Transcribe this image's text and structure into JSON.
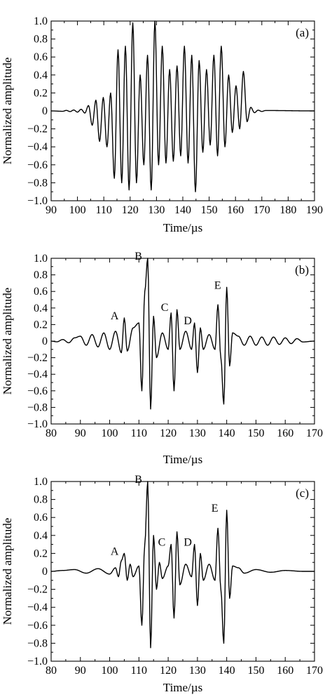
{
  "chart_data": [
    {
      "type": "line",
      "panel": "(a)",
      "xlabel": "Time/µs",
      "ylabel": "Normalized amplitude",
      "xlim": [
        90,
        190
      ],
      "ylim": [
        -1.0,
        1.0
      ],
      "xticks": [
        "90",
        "100",
        "110",
        "120",
        "130",
        "140",
        "150",
        "160",
        "170",
        "180",
        "190"
      ],
      "yticks": [
        "1.0",
        "0.8",
        "0.6",
        "0.4",
        "0.2",
        "0",
        "−0.2",
        "−0.4",
        "−0.6",
        "−0.8",
        "−1.0"
      ],
      "grid": false,
      "annotations": [],
      "series": [
        {
          "x": [
            104.2,
            105.6,
            107.0,
            108.4,
            109.8,
            111.2,
            112.6,
            114.0,
            115.4,
            116.8,
            118.2,
            119.6,
            121.0,
            122.4,
            123.8,
            125.2,
            126.6,
            128.0,
            129.4,
            130.8,
            132.2,
            133.6,
            135.0,
            136.4,
            137.8,
            139.2,
            140.6,
            142.0,
            143.4,
            144.8,
            146.2,
            147.6,
            149.0,
            150.4,
            151.8,
            153.2,
            154.6,
            156.0,
            157.4,
            158.8,
            160.2,
            161.6,
            163.0,
            164.4,
            165.8,
            167.2
          ],
          "y": [
            0.06,
            -0.16,
            0.12,
            -0.34,
            0.15,
            -0.4,
            0.2,
            -0.75,
            0.68,
            -0.8,
            0.72,
            -0.88,
            0.98,
            -0.8,
            0.4,
            -0.6,
            0.62,
            -0.88,
            1.0,
            -0.6,
            0.72,
            -0.58,
            0.46,
            -0.56,
            0.5,
            -0.5,
            0.72,
            -0.58,
            0.62,
            -0.9,
            0.56,
            -0.46,
            0.46,
            -0.38,
            0.62,
            -0.5,
            0.72,
            -0.4,
            0.4,
            -0.24,
            0.28,
            -0.2,
            0.44,
            -0.12,
            0.04,
            -0.02
          ]
        }
      ]
    },
    {
      "type": "line",
      "panel": "(b)",
      "xlabel": "Time/µs",
      "ylabel": "Normalized amplitude",
      "xlim": [
        80,
        170
      ],
      "ylim": [
        -1.0,
        1.0
      ],
      "xticks": [
        "80",
        "90",
        "100",
        "110",
        "120",
        "130",
        "140",
        "150",
        "160",
        "170"
      ],
      "yticks": [
        "1.0",
        "0.8",
        "0.6",
        "0.4",
        "0.2",
        "0",
        "−0.2",
        "−0.4",
        "−0.6",
        "−0.8",
        "−1.0"
      ],
      "grid": false,
      "annotations": [
        {
          "label": "A",
          "x": 105,
          "y": 0.28
        },
        {
          "label": "B",
          "x": 113,
          "y": 1.0
        },
        {
          "label": "C",
          "x": 122,
          "y": 0.38
        },
        {
          "label": "D",
          "x": 130,
          "y": 0.22
        },
        {
          "label": "E",
          "x": 140,
          "y": 0.65
        }
      ],
      "series": [
        {
          "x": [
            84,
            86,
            88,
            90,
            92,
            94,
            96,
            98,
            100,
            102,
            104,
            105,
            106,
            108,
            110,
            111,
            112,
            113,
            114,
            115,
            116,
            118,
            120,
            121,
            122,
            123,
            124,
            126,
            128,
            129,
            130,
            131,
            132,
            134,
            136,
            137,
            138,
            139,
            140,
            141,
            142,
            144,
            146,
            148,
            150,
            152,
            154,
            156,
            158,
            160,
            162,
            164,
            166
          ],
          "y": [
            0.02,
            -0.02,
            0.04,
            0.06,
            -0.05,
            0.08,
            -0.07,
            0.1,
            -0.1,
            0.12,
            -0.14,
            0.28,
            -0.12,
            0.16,
            0.22,
            -0.6,
            0.6,
            1.0,
            -0.82,
            0.3,
            -0.2,
            0.1,
            -0.1,
            0.34,
            -0.6,
            0.38,
            -0.1,
            0.12,
            -0.1,
            0.22,
            -0.38,
            0.16,
            -0.1,
            0.08,
            -0.1,
            0.44,
            -0.2,
            -0.76,
            0.65,
            -0.3,
            0.1,
            0.06,
            -0.05,
            0.06,
            -0.05,
            0.05,
            -0.05,
            0.05,
            -0.04,
            0.04,
            -0.03,
            0.03,
            -0.01
          ]
        }
      ]
    },
    {
      "type": "line",
      "panel": "(c)",
      "xlabel": "Time/µs",
      "ylabel": "Normalized amplitude",
      "xlim": [
        80,
        170
      ],
      "ylim": [
        -1.0,
        1.0
      ],
      "xticks": [
        "80",
        "90",
        "100",
        "110",
        "120",
        "130",
        "140",
        "150",
        "160",
        "170"
      ],
      "yticks": [
        "1.0",
        "0.8",
        "0.6",
        "0.4",
        "0.2",
        "0",
        "−0.2",
        "−0.4",
        "−0.6",
        "−0.8",
        "−1.0"
      ],
      "grid": false,
      "annotations": [
        {
          "label": "A",
          "x": 105,
          "y": 0.2
        },
        {
          "label": "B",
          "x": 113,
          "y": 1.0
        },
        {
          "label": "C",
          "x": 121,
          "y": 0.3
        },
        {
          "label": "D",
          "x": 130,
          "y": 0.3
        },
        {
          "label": "E",
          "x": 139,
          "y": 0.68
        }
      ],
      "series": [
        {
          "x": [
            84,
            88,
            92,
            96,
            100,
            102,
            103,
            104,
            105,
            106,
            107,
            108,
            110,
            111,
            112,
            113,
            114,
            115,
            116,
            117,
            118,
            120,
            121,
            122,
            123,
            124,
            126,
            128,
            129,
            130,
            131,
            132,
            134,
            136,
            137,
            138,
            139,
            140,
            141,
            142,
            144,
            146,
            150,
            155,
            160,
            166
          ],
          "y": [
            0.01,
            0.02,
            -0.02,
            0.03,
            -0.03,
            0.04,
            -0.06,
            0.12,
            0.2,
            -0.1,
            0.08,
            -0.06,
            0.06,
            -0.6,
            0.3,
            1.0,
            -0.85,
            0.4,
            -0.2,
            0.1,
            -0.08,
            0.06,
            0.3,
            -0.52,
            0.44,
            -0.15,
            0.08,
            -0.06,
            0.3,
            -0.38,
            0.2,
            -0.1,
            0.08,
            -0.1,
            0.48,
            -0.2,
            -0.8,
            0.68,
            -0.3,
            0.06,
            0.04,
            -0.02,
            0.02,
            -0.01,
            0.01,
            0.0
          ]
        }
      ]
    }
  ]
}
